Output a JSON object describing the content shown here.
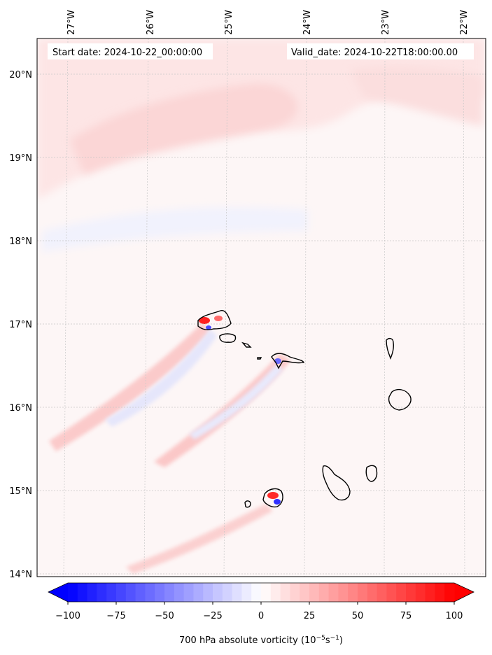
{
  "header": {
    "start_date": "Start date: 2024-10-22_00:00:00",
    "valid_date": "Valid_date: 2024-10-22T18:00:00.00"
  },
  "map": {
    "lon_labels": [
      "27°W",
      "26°W",
      "25°W",
      "24°W",
      "23°W",
      "22°W"
    ],
    "lat_labels": [
      "20°N",
      "19°N",
      "18°N",
      "17°N",
      "16°N",
      "15°N",
      "14°N"
    ],
    "gridlines": true,
    "coastlines": true
  },
  "colorbar": {
    "ticks": [
      "−100",
      "−75",
      "−50",
      "−25",
      "0",
      "25",
      "50",
      "75",
      "100"
    ],
    "label": "700 hPa absolute vorticity (10",
    "label_exp1": "−5",
    "label_mid": "s",
    "label_exp2": "−1",
    "label_end": ")",
    "colormap": "bwr",
    "color_neg": "#0000ff",
    "color_zero": "#ffffff",
    "color_pos": "#ff0000"
  }
}
